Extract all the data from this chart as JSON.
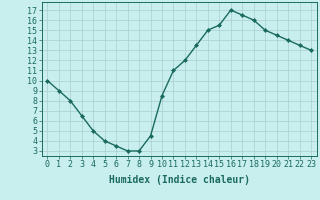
{
  "x": [
    0,
    1,
    2,
    3,
    4,
    5,
    6,
    7,
    8,
    9,
    10,
    11,
    12,
    13,
    14,
    15,
    16,
    17,
    18,
    19,
    20,
    21,
    22,
    23
  ],
  "y": [
    10,
    9,
    8,
    6.5,
    5,
    4,
    3.5,
    3,
    3,
    4.5,
    8.5,
    11,
    12,
    13.5,
    15,
    15.5,
    17,
    16.5,
    16,
    15,
    14.5,
    14,
    13.5,
    13
  ],
  "line_color": "#1a6b5e",
  "marker": "D",
  "marker_size": 2.0,
  "bg_color": "#c8eeee",
  "grid_color": "#aacccc",
  "xlabel": "Humidex (Indice chaleur)",
  "xlabel_fontsize": 7,
  "ylabel_ticks": [
    3,
    4,
    5,
    6,
    7,
    8,
    9,
    10,
    11,
    12,
    13,
    14,
    15,
    16,
    17
  ],
  "xtick_labels": [
    "0",
    "1",
    "2",
    "3",
    "4",
    "5",
    "6",
    "7",
    "8",
    "9",
    "10",
    "11",
    "12",
    "13",
    "14",
    "15",
    "16",
    "17",
    "18",
    "19",
    "20",
    "21",
    "22",
    "23"
  ],
  "ylim": [
    2.5,
    17.8
  ],
  "xlim": [
    -0.5,
    23.5
  ],
  "tick_fontsize": 6,
  "line_width": 1.0
}
